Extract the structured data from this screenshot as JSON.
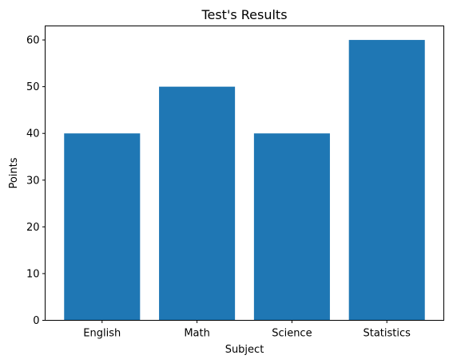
{
  "chart_data": {
    "type": "bar",
    "title": "Test's Results",
    "xlabel": "Subject",
    "ylabel": "Points",
    "categories": [
      "English",
      "Math",
      "Science",
      "Statistics"
    ],
    "values": [
      40,
      50,
      40,
      60
    ],
    "ylim": [
      0,
      63
    ],
    "yticks": [
      0,
      10,
      20,
      30,
      40,
      50,
      60
    ],
    "bar_color": "#1f77b4",
    "grid": false,
    "legend": "none"
  }
}
